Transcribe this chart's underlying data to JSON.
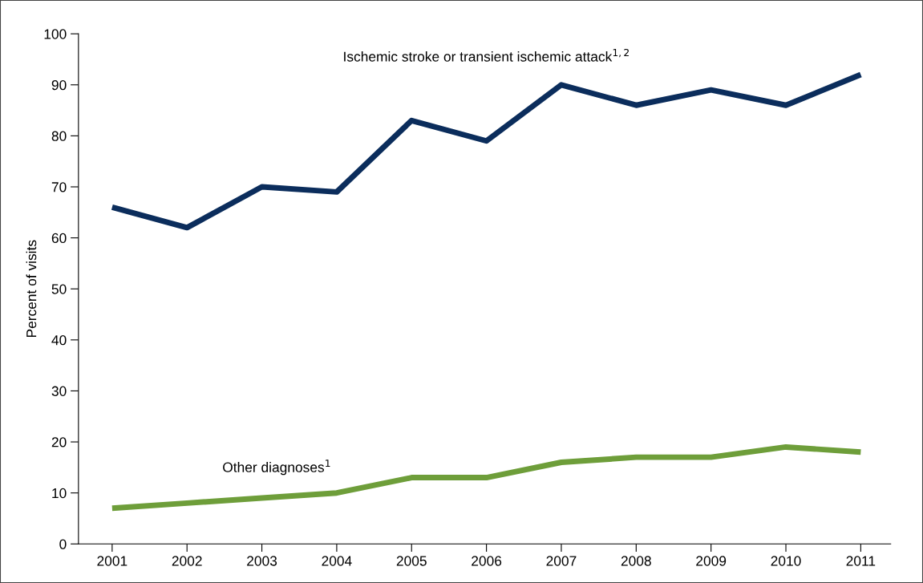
{
  "chart_data": {
    "type": "line",
    "ylabel": "Percent of visits",
    "categories": [
      "2001",
      "2002",
      "2003",
      "2004",
      "2005",
      "2006",
      "2007",
      "2008",
      "2009",
      "2010",
      "2011"
    ],
    "series": [
      {
        "name": "Ischemic stroke or transient ischemic attack$^{1,2}$",
        "color": "#0b2d5c",
        "values": [
          66,
          62,
          70,
          69,
          83,
          79,
          90,
          86,
          89,
          86,
          92
        ]
      },
      {
        "name": "Other diagnoses$^{1}$",
        "color": "#6e9e3a",
        "values": [
          7,
          8,
          9,
          10,
          13,
          13,
          16,
          17,
          17,
          19,
          18
        ]
      }
    ],
    "ylim": [
      0,
      100
    ],
    "yticks": [
      0,
      10,
      20,
      30,
      40,
      50,
      60,
      70,
      80,
      90,
      100
    ],
    "grid": false,
    "legend": false,
    "marker": "none",
    "line_style": "solid"
  }
}
